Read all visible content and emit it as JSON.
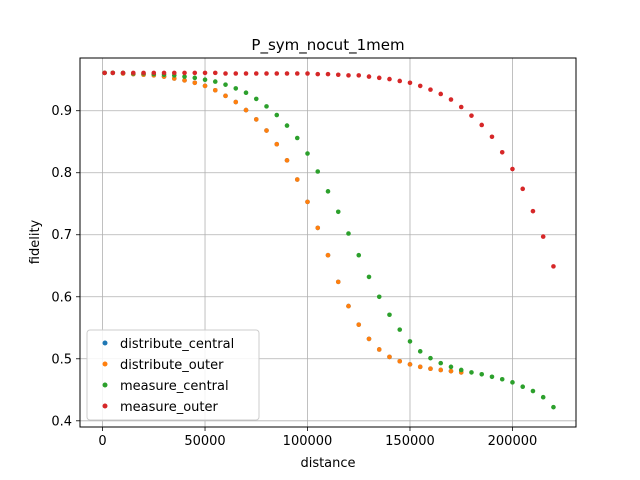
{
  "chart_data": {
    "type": "scatter",
    "title": "P_sym_nocut_1mem",
    "xlabel": "distance",
    "ylabel": "fidelity",
    "xlim": [
      -11000,
      231000
    ],
    "ylim": [
      0.39,
      0.985
    ],
    "xticks": [
      0,
      50000,
      100000,
      150000,
      200000
    ],
    "xtick_labels": [
      "0",
      "50000",
      "100000",
      "150000",
      "200000"
    ],
    "yticks": [
      0.4,
      0.5,
      0.6,
      0.7,
      0.8,
      0.9
    ],
    "ytick_labels": [
      "0.4",
      "0.5",
      "0.6",
      "0.7",
      "0.8",
      "0.9"
    ],
    "grid": true,
    "legend_position": "lower-left",
    "series": [
      {
        "name": "distribute_central",
        "color": "#1f77b4",
        "x": [
          1000,
          5000,
          10000,
          15000,
          20000,
          25000,
          30000,
          35000,
          40000,
          45000,
          50000,
          55000,
          60000,
          65000,
          70000,
          75000,
          80000,
          85000,
          90000,
          95000,
          100000,
          105000,
          110000,
          115000,
          120000,
          125000,
          130000,
          135000,
          140000,
          145000,
          150000,
          155000,
          160000,
          165000,
          170000,
          175000
        ],
        "y": [
          0.961,
          0.961,
          0.96,
          0.959,
          0.958,
          0.957,
          0.955,
          0.952,
          0.949,
          0.945,
          0.94,
          0.933,
          0.924,
          0.914,
          0.901,
          0.886,
          0.868,
          0.846,
          0.82,
          0.789,
          0.753,
          0.711,
          0.667,
          0.624,
          0.585,
          0.555,
          0.532,
          0.515,
          0.503,
          0.496,
          0.491,
          0.487,
          0.484,
          0.482,
          0.48,
          0.478
        ]
      },
      {
        "name": "distribute_outer",
        "color": "#ff7f0e",
        "x": [
          1000,
          5000,
          10000,
          15000,
          20000,
          25000,
          30000,
          35000,
          40000,
          45000,
          50000,
          55000,
          60000,
          65000,
          70000,
          75000,
          80000,
          85000,
          90000,
          95000,
          100000,
          105000,
          110000,
          115000,
          120000,
          125000,
          130000,
          135000,
          140000,
          145000,
          150000,
          155000,
          160000,
          165000,
          170000,
          175000
        ],
        "y": [
          0.961,
          0.961,
          0.96,
          0.959,
          0.958,
          0.957,
          0.955,
          0.952,
          0.949,
          0.945,
          0.94,
          0.933,
          0.924,
          0.914,
          0.901,
          0.886,
          0.868,
          0.846,
          0.82,
          0.789,
          0.753,
          0.711,
          0.667,
          0.624,
          0.585,
          0.555,
          0.532,
          0.515,
          0.503,
          0.496,
          0.491,
          0.487,
          0.484,
          0.482,
          0.48,
          0.478
        ]
      },
      {
        "name": "measure_central",
        "color": "#2ca02c",
        "x": [
          1000,
          5000,
          10000,
          15000,
          20000,
          25000,
          30000,
          35000,
          40000,
          45000,
          50000,
          55000,
          60000,
          65000,
          70000,
          75000,
          80000,
          85000,
          90000,
          95000,
          100000,
          105000,
          110000,
          115000,
          120000,
          125000,
          130000,
          135000,
          140000,
          145000,
          150000,
          155000,
          160000,
          165000,
          170000,
          175000,
          180000,
          185000,
          190000,
          195000,
          200000,
          205000,
          210000,
          215000,
          220000
        ],
        "y": [
          0.961,
          0.961,
          0.961,
          0.96,
          0.96,
          0.959,
          0.958,
          0.957,
          0.955,
          0.953,
          0.95,
          0.947,
          0.942,
          0.936,
          0.929,
          0.919,
          0.907,
          0.893,
          0.876,
          0.856,
          0.831,
          0.802,
          0.77,
          0.737,
          0.702,
          0.667,
          0.632,
          0.6,
          0.571,
          0.547,
          0.528,
          0.512,
          0.501,
          0.493,
          0.487,
          0.482,
          0.478,
          0.475,
          0.471,
          0.467,
          0.462,
          0.455,
          0.448,
          0.438,
          0.422
        ]
      },
      {
        "name": "measure_outer",
        "color": "#d62728",
        "x": [
          1000,
          5000,
          10000,
          15000,
          20000,
          25000,
          30000,
          35000,
          40000,
          45000,
          50000,
          55000,
          60000,
          65000,
          70000,
          75000,
          80000,
          85000,
          90000,
          95000,
          100000,
          105000,
          110000,
          115000,
          120000,
          125000,
          130000,
          135000,
          140000,
          145000,
          150000,
          155000,
          160000,
          165000,
          170000,
          175000,
          180000,
          185000,
          190000,
          195000,
          200000,
          205000,
          210000,
          215000,
          220000
        ],
        "y": [
          0.961,
          0.961,
          0.961,
          0.961,
          0.961,
          0.961,
          0.961,
          0.961,
          0.961,
          0.961,
          0.961,
          0.961,
          0.96,
          0.96,
          0.96,
          0.96,
          0.96,
          0.96,
          0.96,
          0.96,
          0.96,
          0.959,
          0.959,
          0.958,
          0.957,
          0.957,
          0.955,
          0.953,
          0.951,
          0.948,
          0.945,
          0.94,
          0.934,
          0.927,
          0.918,
          0.906,
          0.892,
          0.877,
          0.858,
          0.833,
          0.806,
          0.774,
          0.738,
          0.697,
          0.649
        ]
      }
    ]
  }
}
